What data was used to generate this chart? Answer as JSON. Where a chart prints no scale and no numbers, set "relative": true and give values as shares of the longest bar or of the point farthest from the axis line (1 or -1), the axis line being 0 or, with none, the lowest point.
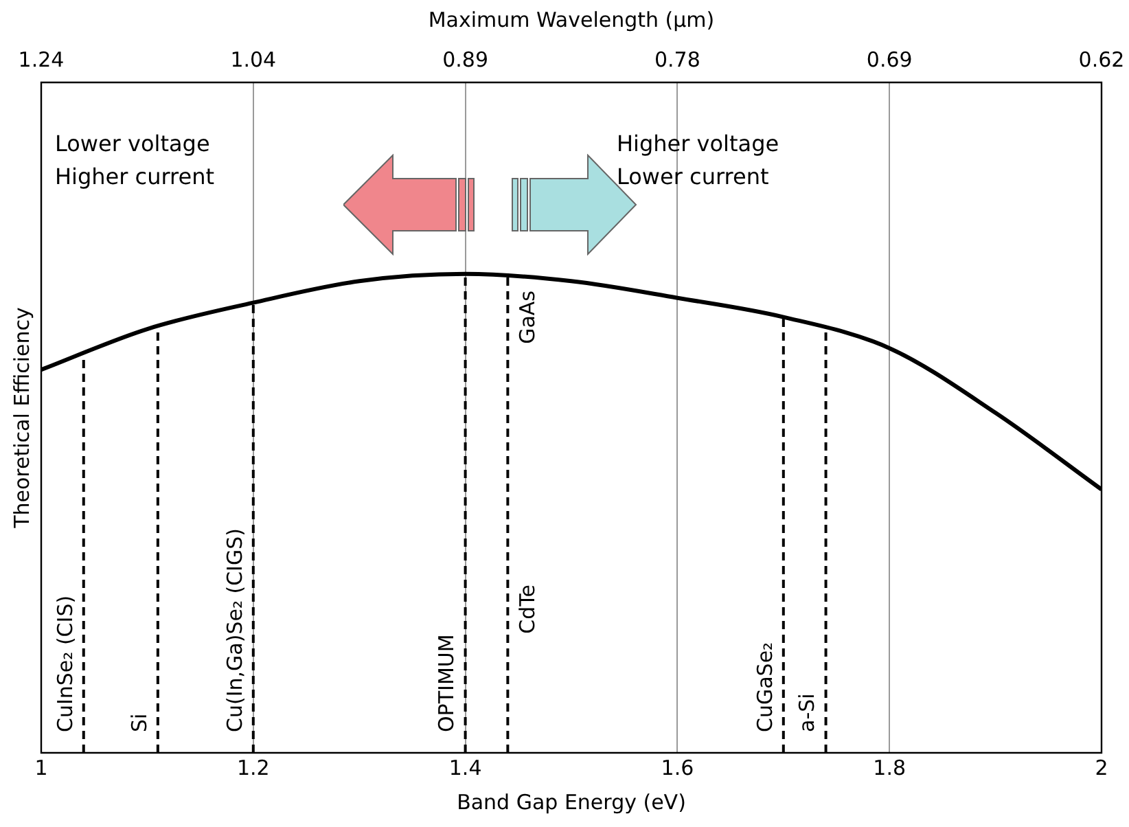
{
  "chart_data": {
    "type": "line",
    "xlabel": "Band Gap Energy (eV)",
    "ylabel": "Theoretical Efficiency",
    "relative": true,
    "grid": "x",
    "legend": false,
    "marker": "none",
    "line_style": "solid",
    "xlim": [
      1,
      2
    ],
    "xticks": [
      1,
      1.2,
      1.4,
      1.6,
      1.8,
      2
    ],
    "series": [
      {
        "color": "#000000",
        "x": [
          1,
          1.1,
          1.2,
          1.3,
          1.4,
          1.5,
          1.6,
          1.7,
          1.8,
          1.9,
          2
        ],
        "values": [
          0.8,
          0.885,
          0.94,
          0.985,
          1,
          0.985,
          0.95,
          0.91,
          0.845,
          0.71,
          0.55
        ]
      }
    ],
    "ref_lines": [
      {
        "axis": "x",
        "value": 1.04,
        "label": "CuInSe₂ (CIS)",
        "line_style": "dashed"
      },
      {
        "axis": "x",
        "value": 1.11,
        "label": "Si",
        "line_style": "dashed"
      },
      {
        "axis": "x",
        "value": 1.2,
        "label": "Cu(In,Ga)Se₂ (CIGS)",
        "line_style": "dashed"
      },
      {
        "axis": "x",
        "value": 1.4,
        "label": "OPTIMUM",
        "line_style": "dashed"
      },
      {
        "axis": "x",
        "value": 1.44,
        "label": "GaAs",
        "line_style": "dashed"
      },
      {
        "axis": "x",
        "value": 1.7,
        "label": "CuGaSe₂",
        "line_style": "dashed"
      },
      {
        "axis": "x",
        "value": 1.74,
        "label": "a-Si",
        "line_style": "dashed"
      }
    ],
    "annotations": [
      "Lower voltage\nHigher current",
      "Higher voltage\nLower current",
      "Maximum Wavelength (μm)",
      "1.24",
      "1.04",
      "0.89",
      "0.78",
      "0.69",
      "0.62",
      {
        "text": "CdTe",
        "x": 1.44,
        "y": 0.3
      }
    ]
  }
}
